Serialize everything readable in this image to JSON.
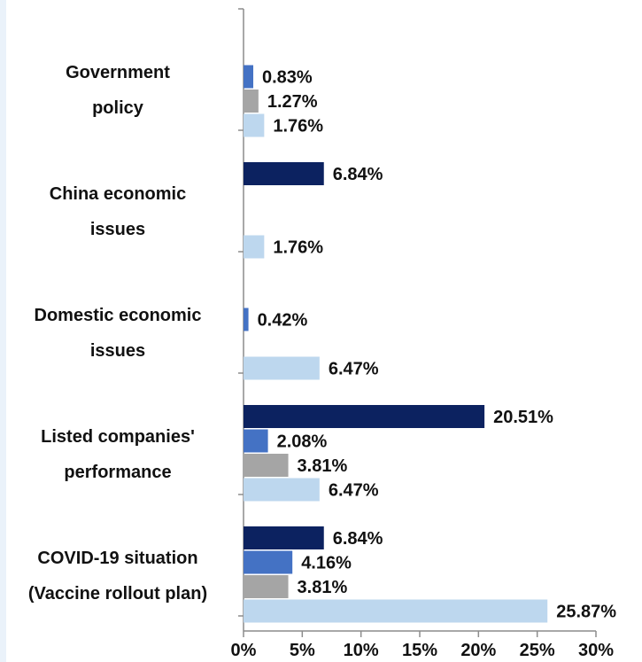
{
  "chart_data": {
    "type": "bar",
    "orientation": "horizontal",
    "categories": [
      [
        "Government",
        "policy"
      ],
      [
        "China economic",
        "issues"
      ],
      [
        "Domestic economic",
        "issues"
      ],
      [
        "Listed companies'",
        "performance"
      ],
      [
        "COVID-19 situation",
        "(Vaccine rollout plan)"
      ]
    ],
    "series": [
      {
        "color": "#0c2260",
        "values": [
          null,
          6.84,
          null,
          20.51,
          6.84
        ],
        "labels": [
          "",
          "6.84%",
          "",
          "20.51%",
          "6.84%"
        ]
      },
      {
        "color": "#4472c4",
        "values": [
          0.83,
          null,
          0.42,
          2.08,
          4.16
        ],
        "labels": [
          "0.83%",
          "",
          "0.42%",
          "2.08%",
          "4.16%"
        ]
      },
      {
        "color": "#a5a5a5",
        "values": [
          1.27,
          null,
          null,
          3.81,
          3.81
        ],
        "labels": [
          "1.27%",
          "",
          "",
          "3.81%",
          "3.81%"
        ]
      },
      {
        "color": "#bdd7ee",
        "values": [
          1.76,
          1.76,
          6.47,
          6.47,
          25.87
        ],
        "labels": [
          "1.76%",
          "1.76%",
          "6.47%",
          "6.47%",
          "25.87%"
        ]
      }
    ],
    "x_ticks": [
      "0%",
      "5%",
      "10%",
      "15%",
      "20%",
      "25%",
      "30%"
    ],
    "xlim": [
      0,
      30
    ],
    "grid": false,
    "legend": "none"
  }
}
